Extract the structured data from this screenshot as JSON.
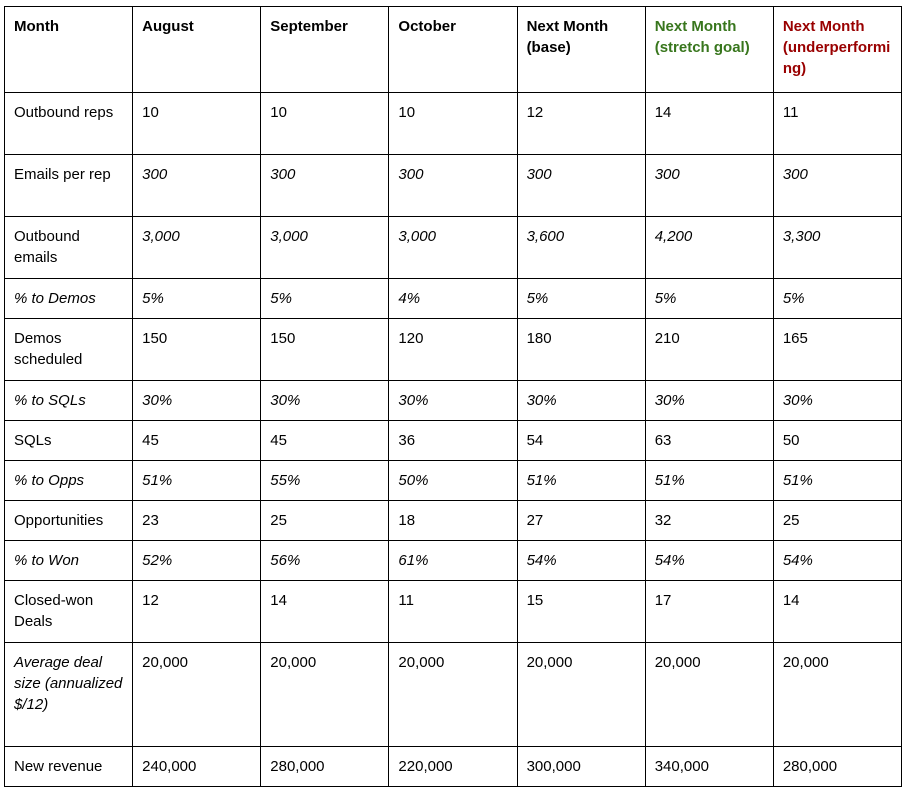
{
  "table": {
    "columns": [
      {
        "label": "Month",
        "color": "#000000"
      },
      {
        "label": "August",
        "color": "#000000"
      },
      {
        "label": "September",
        "color": "#000000"
      },
      {
        "label": "October",
        "color": "#000000"
      },
      {
        "label": "Next Month (base)",
        "color": "#000000"
      },
      {
        "label": "Next Month (stretch goal)",
        "color": "#38761d"
      },
      {
        "label": "Next Month (underperforming)",
        "color": "#990000"
      }
    ],
    "rows": [
      {
        "label": "Outbound reps",
        "label_italic": false,
        "values_italic": false,
        "size": "tall",
        "values": [
          "10",
          "10",
          "10",
          "12",
          "14",
          "11"
        ]
      },
      {
        "label": "Emails per rep",
        "label_italic": false,
        "values_italic": true,
        "size": "tall",
        "values": [
          "300",
          "300",
          "300",
          "300",
          "300",
          "300"
        ]
      },
      {
        "label": "Outbound emails",
        "label_italic": false,
        "values_italic": true,
        "size": "tall",
        "values": [
          "3,000",
          "3,000",
          "3,000",
          "3,600",
          "4,200",
          "3,300"
        ]
      },
      {
        "label": "% to Demos",
        "label_italic": true,
        "values_italic": true,
        "size": "one",
        "values": [
          "5%",
          "5%",
          "4%",
          "5%",
          "5%",
          "5%"
        ]
      },
      {
        "label": "Demos scheduled",
        "label_italic": false,
        "values_italic": false,
        "size": "tall",
        "values": [
          "150",
          "150",
          "120",
          "180",
          "210",
          "165"
        ]
      },
      {
        "label": "% to SQLs",
        "label_italic": true,
        "values_italic": true,
        "size": "one",
        "values": [
          "30%",
          "30%",
          "30%",
          "30%",
          "30%",
          "30%"
        ]
      },
      {
        "label": "SQLs",
        "label_italic": false,
        "values_italic": false,
        "size": "one",
        "values": [
          "45",
          "45",
          "36",
          "54",
          "63",
          "50"
        ]
      },
      {
        "label": "% to Opps",
        "label_italic": true,
        "values_italic": true,
        "size": "one",
        "values": [
          "51%",
          "55%",
          "50%",
          "51%",
          "51%",
          "51%"
        ]
      },
      {
        "label": "Opportunities",
        "label_italic": false,
        "values_italic": false,
        "size": "one",
        "values": [
          "23",
          "25",
          "18",
          "27",
          "32",
          "25"
        ]
      },
      {
        "label": "% to Won",
        "label_italic": true,
        "values_italic": true,
        "size": "one",
        "values": [
          "52%",
          "56%",
          "61%",
          "54%",
          "54%",
          "54%"
        ]
      },
      {
        "label": "Closed-won Deals",
        "label_italic": false,
        "values_italic": false,
        "size": "tall",
        "values": [
          "12",
          "14",
          "11",
          "15",
          "17",
          "14"
        ]
      },
      {
        "label": "Average deal size (annualized $/12)",
        "label_italic": true,
        "values_italic": false,
        "size": "big",
        "values": [
          "20,000",
          "20,000",
          "20,000",
          "20,000",
          "20,000",
          "20,000"
        ]
      },
      {
        "label": "New revenue",
        "label_italic": false,
        "values_italic": false,
        "size": "one",
        "values": [
          "240,000",
          "280,000",
          "220,000",
          "300,000",
          "340,000",
          "280,000"
        ]
      }
    ]
  }
}
